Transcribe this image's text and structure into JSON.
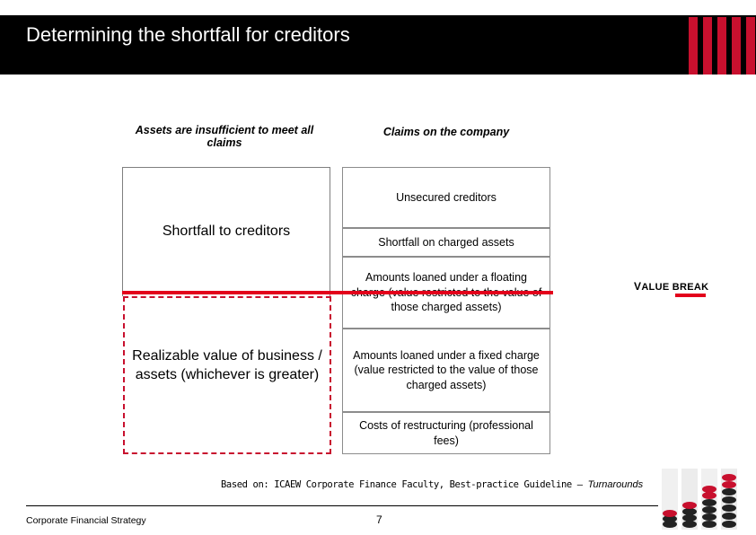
{
  "slide": {
    "title": "Determining the shortfall for creditors",
    "colors": {
      "accent": "#c8102e",
      "line": "#e3001b",
      "header_bg": "#000000"
    }
  },
  "headings": {
    "left": "Assets are insufficient to meet all claims",
    "right": "Claims on the company"
  },
  "assets": {
    "shortfall": "Shortfall to creditors",
    "realizable": "Realizable value of business / assets (whichever is greater)"
  },
  "claims": [
    "Unsecured creditors",
    "Shortfall on charged assets",
    "Amounts loaned under a floating charge (value restricted to the value of those charged assets)",
    "Amounts loaned under a fixed charge (value restricted to the value of those charged assets)",
    "Costs of restructuring (professional fees)"
  ],
  "value_break": {
    "first": "V",
    "rest": "ALUE BREAK"
  },
  "source": {
    "prefix": "Based on: ICAEW Corporate Finance Faculty, Best-practice Guideline – ",
    "title": "Turnarounds"
  },
  "footer": {
    "left": "Corporate Financial Strategy",
    "page": "7"
  },
  "icons": {
    "logo": "red-bars-logo",
    "decoration": "stacked-chips-image"
  }
}
